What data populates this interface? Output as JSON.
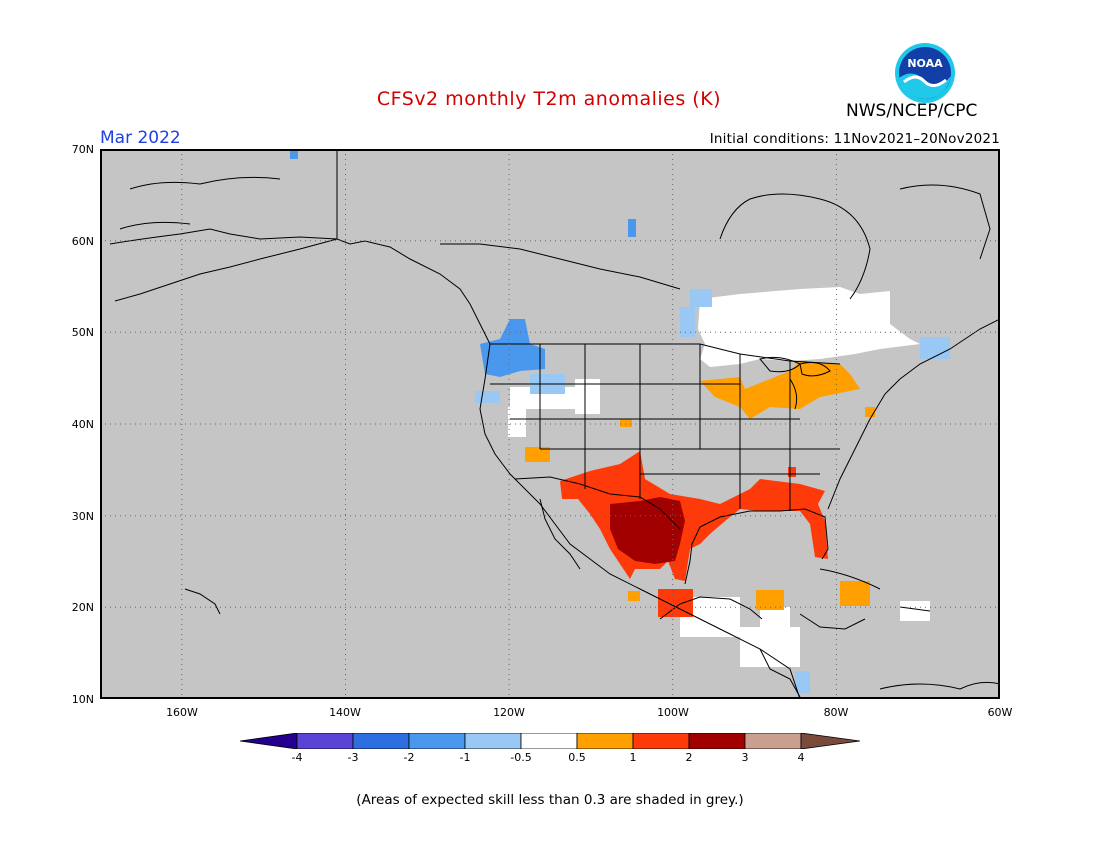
{
  "header": {
    "title": "CFSv2 monthly T2m anomalies (K)",
    "month": "Mar 2022",
    "initial_conditions": "Initial conditions: 11Nov2021–20Nov2021",
    "organization": "NWS/NCEP/CPC",
    "logo_text": "NOAA"
  },
  "axes": {
    "lat_labels": [
      "70N",
      "60N",
      "50N",
      "40N",
      "30N",
      "20N",
      "10N"
    ],
    "lon_labels": [
      "160W",
      "140W",
      "120W",
      "100W",
      "80W",
      "60W"
    ]
  },
  "colorbar": {
    "labels": [
      "-4",
      "-3",
      "-2",
      "-1",
      "-0.5",
      "0.5",
      "1",
      "2",
      "3",
      "4"
    ],
    "colors": [
      "#24008f",
      "#5a44d6",
      "#2d6ee0",
      "#4a98ee",
      "#9ac8f5",
      "#ffffff",
      "#ff9f00",
      "#ff3a0a",
      "#a20000",
      "#c9a090",
      "#7a4a3a"
    ]
  },
  "map": {
    "background_color": "#c5c5c5",
    "extent": {
      "lon_min": -170,
      "lon_max": -60,
      "lat_min": 10,
      "lat_max": 70
    }
  },
  "footnote": "(Areas of expected skill less than 0.3 are shaded in grey.)"
}
